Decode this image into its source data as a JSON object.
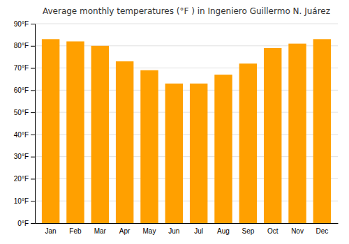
{
  "chart_data": {
    "type": "bar",
    "title": "Average monthly temperatures (°F ) in Ingeniero Guillermo N. Juárez",
    "categories": [
      "Jan",
      "Feb",
      "Mar",
      "Apr",
      "May",
      "Jun",
      "Jul",
      "Aug",
      "Sep",
      "Oct",
      "Nov",
      "Dec"
    ],
    "values": [
      83,
      82,
      80,
      73,
      69,
      63,
      63,
      67,
      72,
      79,
      81,
      83
    ],
    "color": "#FFA000",
    "ylim": [
      0,
      90
    ],
    "yticks": [
      {
        "value": 0,
        "label": "0°F"
      },
      {
        "value": 10,
        "label": "10°F"
      },
      {
        "value": 20,
        "label": "20°F"
      },
      {
        "value": 30,
        "label": "30°F"
      },
      {
        "value": 40,
        "label": "40°F"
      },
      {
        "value": 50,
        "label": "50°F"
      },
      {
        "value": 60,
        "label": "60°F"
      },
      {
        "value": 70,
        "label": "70°F"
      },
      {
        "value": 80,
        "label": "80°F"
      },
      {
        "value": 90,
        "label": "90°F"
      }
    ],
    "grid": true
  }
}
